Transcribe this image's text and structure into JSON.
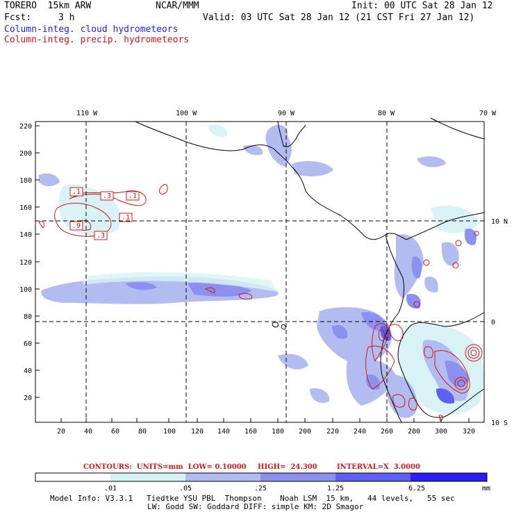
{
  "header": {
    "model": "TORERO  15km ARW",
    "center": "NCAR/MMM",
    "init": "Init: 00 UTC Sat 28 Jan 12",
    "fcst_label": "Fcst:",
    "fcst_value": "3 h",
    "valid": "Valid: 03 UTC Sat 28 Jan 12 (21 CST Fri 27 Jan 12)",
    "field1": "Column-integ. cloud hydrometeors",
    "field2": "Column-integ. precip. hydrometeors"
  },
  "colors": {
    "field1": "#1f1fd0",
    "field2": "#d01818",
    "shade": [
      "#ffffff",
      "#d8f2f5",
      "#b3bcf0",
      "#8c90ee",
      "#5f5ff0",
      "#2c1df0"
    ]
  },
  "map": {
    "lon_labels": [
      "110 W",
      "100 W",
      "90 W",
      "80 W",
      "70 W"
    ],
    "lat_labels": [
      "10 N",
      "0",
      "10 S"
    ],
    "y_ticks": [
      "220",
      "200",
      "180",
      "160",
      "140",
      "120",
      "100",
      "80",
      "60",
      "40",
      "20"
    ],
    "x_ticks": [
      "20",
      "40",
      "60",
      "80",
      "100",
      "120",
      "140",
      "160",
      "180",
      "200",
      "220",
      "240",
      "260",
      "280",
      "300",
      "320"
    ],
    "contour_labels": [
      ".1",
      ".3",
      ".1",
      ".1",
      ".9",
      ".3"
    ]
  },
  "contour_info": {
    "contours": "CONTOURS:  UNITS=mm  LOW= 0.10000",
    "high": "HIGH=  24.300",
    "interval": "INTERVAL=X  3.0000"
  },
  "colorbar": {
    "labels": [
      ".01",
      ".05",
      ".25",
      "1.25",
      "6.25"
    ],
    "unit": "mm"
  },
  "footer": {
    "line1": "Model Info: V3.3.1   Tiedtke YSU PBL  Thompson    Noah LSM  15 km,   44 levels,   55 sec",
    "line2": "LW: Godd SW: Goddard DIFF: simple KM: 2D Smagor"
  }
}
